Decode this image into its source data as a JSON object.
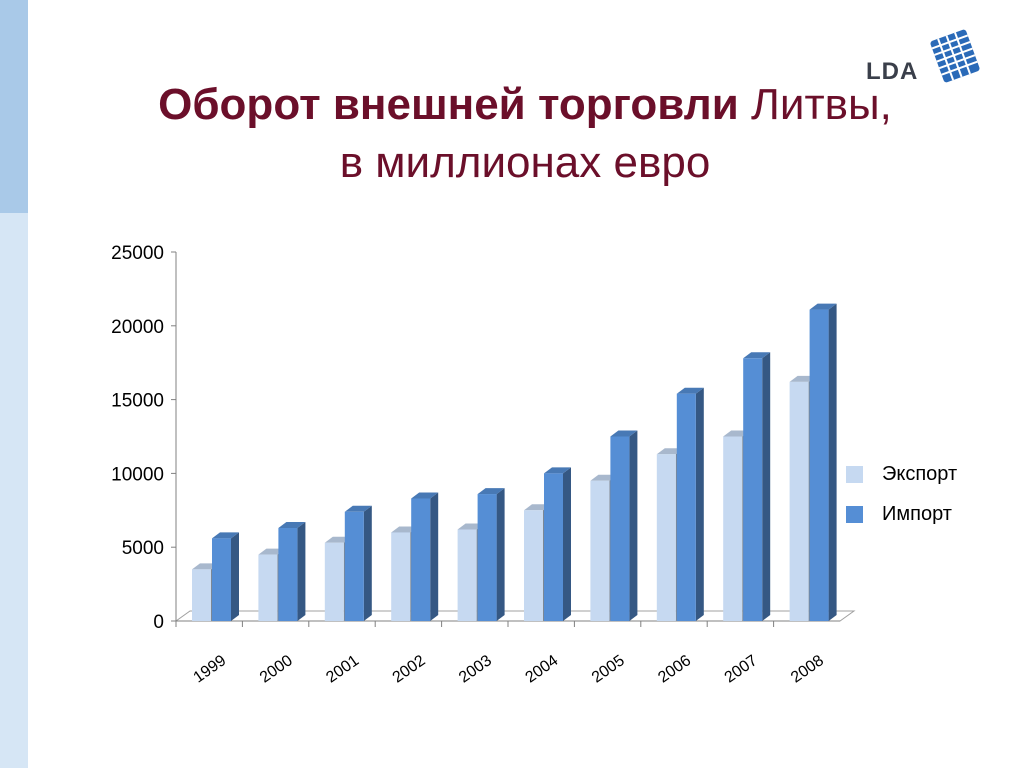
{
  "title": {
    "bold": "Оборот внешней торговли",
    "regular": " Литвы,",
    "line2": "в миллионах евро"
  },
  "logo": {
    "text": "LDA"
  },
  "chart_data": {
    "type": "bar",
    "categories": [
      "1999",
      "2000",
      "2001",
      "2002",
      "2003",
      "2004",
      "2005",
      "2006",
      "2007",
      "2008"
    ],
    "series": [
      {
        "name": "Экспорт",
        "color": "#c6d9f1",
        "values": [
          3500,
          4500,
          5300,
          6000,
          6200,
          7500,
          9500,
          11300,
          12500,
          16200
        ]
      },
      {
        "name": "Импорт",
        "color": "#558ed5",
        "values": [
          5600,
          6300,
          7400,
          8300,
          8600,
          10000,
          12500,
          15400,
          17800,
          21100
        ]
      }
    ],
    "ylim": [
      0,
      25000
    ],
    "yticks": [
      "0",
      "5000",
      "10000",
      "15000",
      "20000",
      "25000"
    ],
    "xlabel": "",
    "ylabel": "",
    "legend": "right",
    "grid": false
  }
}
